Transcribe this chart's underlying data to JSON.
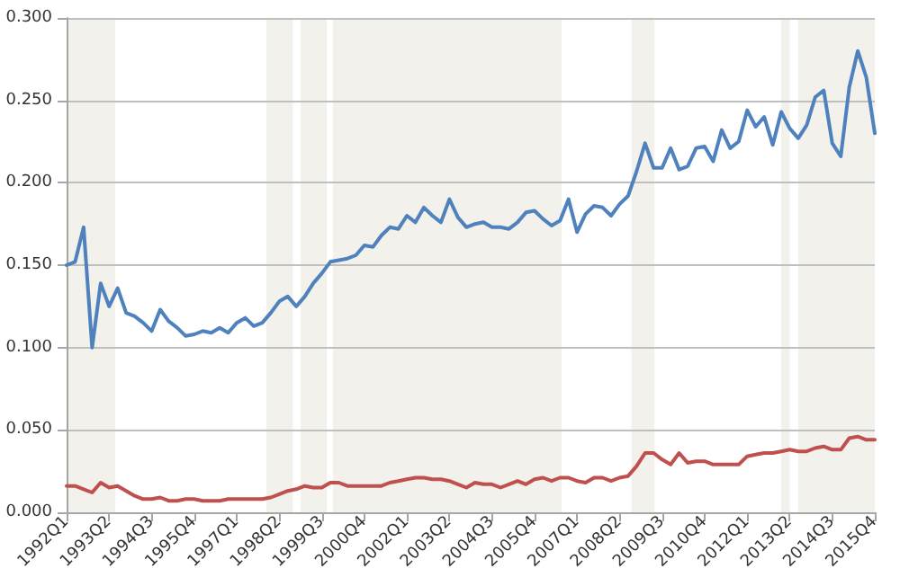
{
  "chart_data": {
    "type": "line",
    "categories": [
      "1992Q1",
      null,
      null,
      null,
      null,
      "1993Q2",
      null,
      null,
      null,
      null,
      "1994Q3",
      null,
      null,
      null,
      null,
      "1995Q4",
      null,
      null,
      null,
      null,
      "1997Q1",
      null,
      null,
      null,
      null,
      "1998Q2",
      null,
      null,
      null,
      null,
      "1999Q3",
      null,
      null,
      null,
      null,
      "2000Q4",
      null,
      null,
      null,
      null,
      "2002Q1",
      null,
      null,
      null,
      null,
      "2003Q2",
      null,
      null,
      null,
      null,
      "2004Q3",
      null,
      null,
      null,
      null,
      "2005Q4",
      null,
      null,
      null,
      null,
      "2007Q1",
      null,
      null,
      null,
      null,
      "2008Q2",
      null,
      null,
      null,
      null,
      "2009Q3",
      null,
      null,
      null,
      null,
      "2010Q4",
      null,
      null,
      null,
      null,
      "2012Q1",
      null,
      null,
      null,
      null,
      "2013Q2",
      null,
      null,
      null,
      null,
      "2014Q3",
      null,
      null,
      null,
      null,
      "2015Q4"
    ],
    "series": [
      {
        "color": "#4f81bd",
        "values": [
          0.15,
          0.152,
          0.173,
          0.1,
          0.139,
          0.125,
          0.136,
          0.121,
          0.119,
          0.115,
          0.11,
          0.123,
          0.116,
          0.112,
          0.107,
          0.108,
          0.11,
          0.109,
          0.112,
          0.109,
          0.115,
          0.118,
          0.113,
          0.115,
          0.121,
          0.128,
          0.131,
          0.125,
          0.131,
          0.139,
          0.145,
          0.152,
          0.153,
          0.154,
          0.156,
          0.162,
          0.161,
          0.168,
          0.173,
          0.172,
          0.18,
          0.176,
          0.185,
          0.18,
          0.176,
          0.19,
          0.179,
          0.173,
          0.175,
          0.176,
          0.173,
          0.173,
          0.172,
          0.176,
          0.182,
          0.183,
          0.178,
          0.174,
          0.177,
          0.19,
          0.17,
          0.181,
          0.186,
          0.185,
          0.18,
          0.187,
          0.192,
          0.207,
          0.224,
          0.209,
          0.209,
          0.221,
          0.208,
          0.21,
          0.221,
          0.222,
          0.213,
          0.232,
          0.221,
          0.225,
          0.244,
          0.234,
          0.24,
          0.223,
          0.243,
          0.233,
          0.227,
          0.235,
          0.252,
          0.256,
          0.224,
          0.216,
          0.258,
          0.28,
          0.264,
          0.23
        ]
      },
      {
        "color": "#c0504d",
        "values": [
          0.016,
          0.016,
          0.014,
          0.012,
          0.018,
          0.015,
          0.016,
          0.013,
          0.01,
          0.008,
          0.008,
          0.009,
          0.007,
          0.007,
          0.008,
          0.008,
          0.007,
          0.007,
          0.007,
          0.008,
          0.008,
          0.008,
          0.008,
          0.008,
          0.009,
          0.011,
          0.013,
          0.014,
          0.016,
          0.015,
          0.015,
          0.018,
          0.018,
          0.016,
          0.016,
          0.016,
          0.016,
          0.016,
          0.018,
          0.019,
          0.02,
          0.021,
          0.021,
          0.02,
          0.02,
          0.019,
          0.017,
          0.015,
          0.018,
          0.017,
          0.017,
          0.015,
          0.017,
          0.019,
          0.017,
          0.02,
          0.021,
          0.019,
          0.021,
          0.021,
          0.019,
          0.018,
          0.021,
          0.021,
          0.019,
          0.021,
          0.022,
          0.028,
          0.036,
          0.036,
          0.032,
          0.029,
          0.036,
          0.03,
          0.031,
          0.031,
          0.029,
          0.029,
          0.029,
          0.029,
          0.034,
          0.035,
          0.036,
          0.036,
          0.037,
          0.038,
          0.037,
          0.037,
          0.039,
          0.04,
          0.038,
          0.038,
          0.045,
          0.046,
          0.044,
          0.044
        ]
      }
    ],
    "ylim": [
      0,
      0.3
    ],
    "yticks": [
      {
        "value": 0,
        "label": "0.000"
      },
      {
        "value": 0.05,
        "label": "0.050"
      },
      {
        "value": 0.1,
        "label": "0.100"
      },
      {
        "value": 0.15,
        "label": "0.150"
      },
      {
        "value": 0.2,
        "label": "0.200"
      },
      {
        "value": 0.25,
        "label": "0.250"
      },
      {
        "value": 0.3,
        "label": "0.300"
      }
    ],
    "grid": "y",
    "marker": "none",
    "line_style": "solid"
  }
}
